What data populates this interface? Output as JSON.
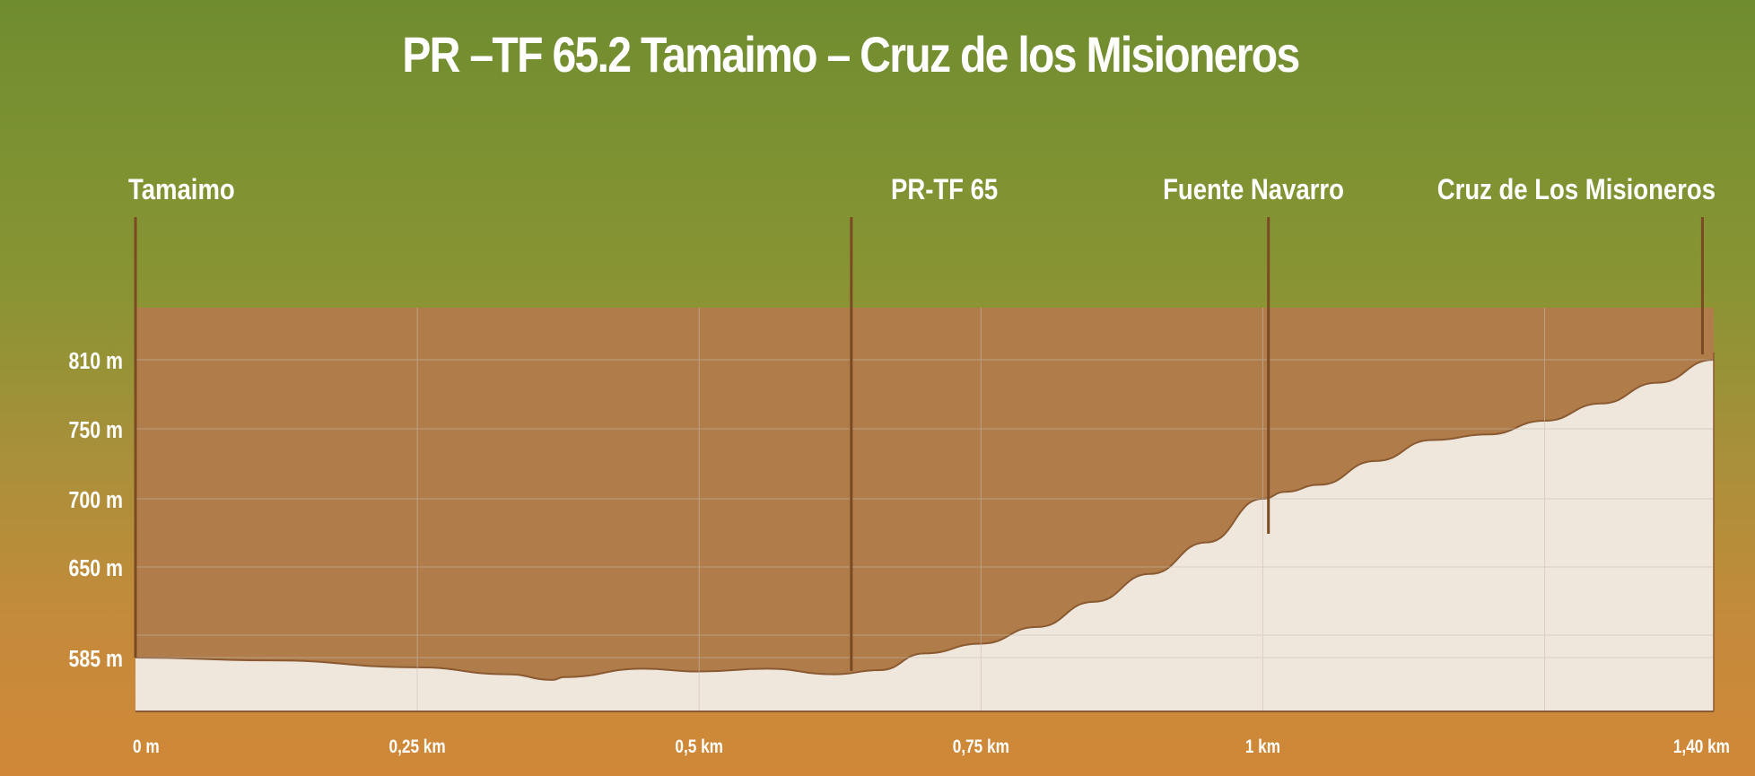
{
  "chart_data": {
    "type": "area",
    "title": "PR –TF 65.2 Tamaimo – Cruz de los Misioneros",
    "x": [
      0,
      0.12,
      0.25,
      0.33,
      0.37,
      0.38,
      0.45,
      0.5,
      0.56,
      0.62,
      0.66,
      0.7,
      0.75,
      0.8,
      0.85,
      0.9,
      0.95,
      1.0,
      1.02,
      1.05,
      1.1,
      1.15,
      1.2,
      1.25,
      1.3,
      1.35,
      1.4
    ],
    "y": [
      585,
      583,
      578,
      573,
      569,
      571,
      577,
      575,
      577,
      573,
      576,
      588,
      595,
      607,
      625,
      645,
      668,
      700,
      705,
      710,
      727,
      742,
      746,
      757,
      772,
      790,
      810
    ],
    "xlabel": "",
    "ylabel": "",
    "x_tick_values": [
      0,
      0.25,
      0.5,
      0.75,
      1.0,
      1.4
    ],
    "x_tick_labels": [
      "0 m",
      "0,25 km",
      "0,5 km",
      "0,75 km",
      "1 km",
      "1,40 km"
    ],
    "y_tick_values": [
      585,
      650,
      700,
      750,
      810
    ],
    "y_tick_labels": [
      "585 m",
      "650 m",
      "700 m",
      "750 m",
      "810 m"
    ],
    "waypoints": [
      {
        "x": 0,
        "label": "Tamaimo"
      },
      {
        "x": 0.635,
        "label": "PR-TF 65"
      },
      {
        "x": 1.005,
        "label": "Fuente Navarro"
      },
      {
        "x": 1.39,
        "label": "Cruz de Los Misioneros"
      }
    ],
    "grid": true,
    "colors": {
      "terrain": "#efe6dc",
      "band": "#b07c4a",
      "outline": "#8a5a32",
      "grid": "#c9bfb3"
    }
  }
}
